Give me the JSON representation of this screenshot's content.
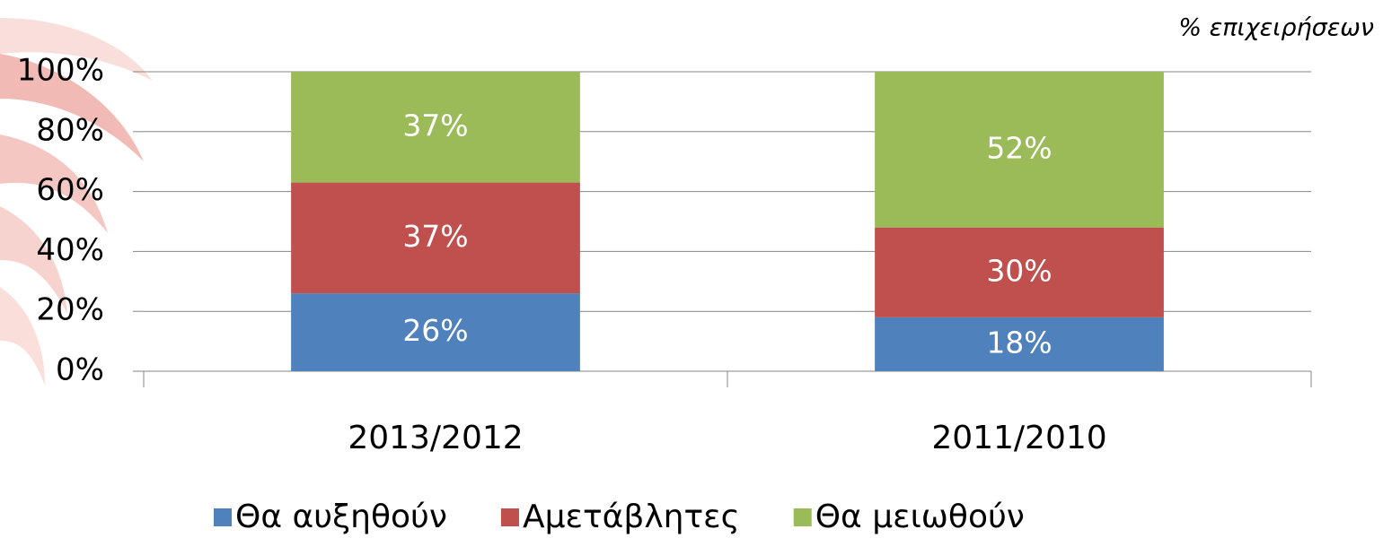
{
  "chart_data": {
    "type": "stacked_bar",
    "annotation": "% επιχειρήσεων",
    "categories": [
      "2013/2012",
      "2011/2010"
    ],
    "series": [
      {
        "name": "Θα αυξηθούν",
        "color": "#4f81bd",
        "values": [
          26,
          18
        ],
        "value_labels": [
          "26%",
          "18%"
        ]
      },
      {
        "name": "Αμετάβλητες",
        "color": "#c0504d",
        "values": [
          37,
          30
        ],
        "value_labels": [
          "37%",
          "30%"
        ]
      },
      {
        "name": "Θα μειωθούν",
        "color": "#9bbb59",
        "values": [
          37,
          52
        ],
        "value_labels": [
          "37%",
          "52%"
        ]
      }
    ],
    "ylim": [
      0,
      100
    ],
    "yticks": [
      {
        "value": 0,
        "label": "0%"
      },
      {
        "value": 20,
        "label": "20%"
      },
      {
        "value": 40,
        "label": "40%"
      },
      {
        "value": 60,
        "label": "60%"
      },
      {
        "value": 80,
        "label": "80%"
      },
      {
        "value": 100,
        "label": "100%"
      }
    ],
    "grid": true,
    "legend": "bottom"
  }
}
